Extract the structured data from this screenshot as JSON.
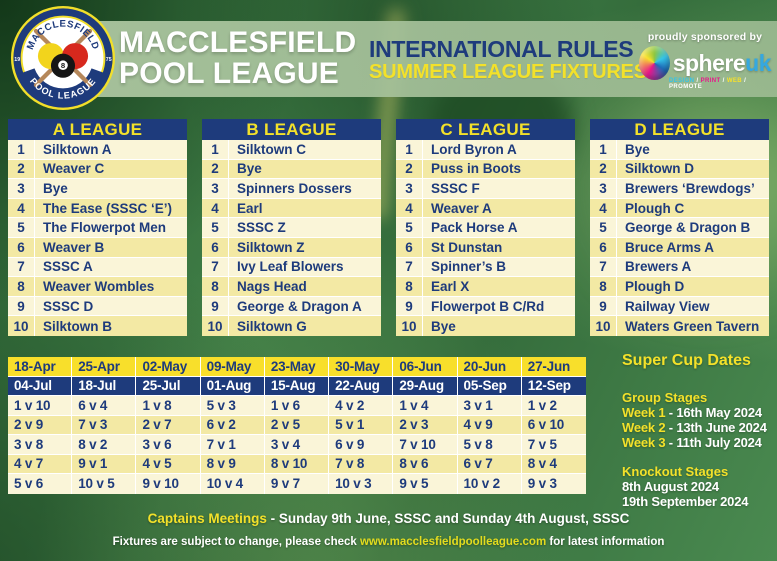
{
  "colors": {
    "navy": "#1e3b7c",
    "yellow": "#f3e12a",
    "cream": "#faf5d8",
    "pale": "#f3e9a4",
    "dateYellow": "#f8df2b"
  },
  "header": {
    "title_line1": "MACCLESFIELD",
    "title_line2": "POOL LEAGUE",
    "subtitle_line1": "INTERNATIONAL RULES",
    "subtitle_line2": "SUMMER LEAGUE FIXTURES",
    "sponsor": {
      "tagline": "proudly sponsored by",
      "brand": "sphere",
      "brand_suffix": "uk",
      "services": [
        "DESIGN",
        "PRINT",
        "WEB",
        "PROMOTE"
      ],
      "service_colors": [
        "#35c4e8",
        "#e8168b",
        "#f8e12b",
        "#ffffff"
      ]
    }
  },
  "logo": {
    "arc_top": "MACCLESFIELD",
    "arc_bottom": "POOL LEAGUE",
    "year_left": "19",
    "year_right": "75",
    "ball_number": "8"
  },
  "leagues": [
    {
      "title": "A LEAGUE",
      "teams": [
        "Silktown A",
        "Weaver C",
        "Bye",
        "The Ease (SSSC ‘E’)",
        "The Flowerpot Men",
        "Weaver B",
        "SSSC A",
        "Weaver Wombles",
        "SSSC D",
        "Silktown B"
      ]
    },
    {
      "title": "B LEAGUE",
      "teams": [
        "Silktown C",
        "Bye",
        "Spinners Dossers",
        "Earl",
        "SSSC Z",
        "Silktown Z",
        "Ivy Leaf Blowers",
        "Nags Head",
        "George & Dragon A",
        "Silktown G"
      ]
    },
    {
      "title": "C LEAGUE",
      "teams": [
        "Lord Byron A",
        "Puss in Boots",
        "SSSC F",
        "Weaver A",
        "Pack Horse A",
        "St Dunstan",
        "Spinner’s B",
        "Earl X",
        "Flowerpot B C/Rd",
        "Bye"
      ]
    },
    {
      "title": "D LEAGUE",
      "teams": [
        "Bye",
        "Silktown D",
        "Brewers ‘Brewdogs’",
        "Plough C",
        "George & Dragon B",
        "Bruce Arms A",
        "Brewers A",
        "Plough D",
        "Railway View",
        "Waters Green Tavern"
      ]
    }
  ],
  "fixtures": {
    "dates_spring": [
      "18-Apr",
      "25-Apr",
      "02-May",
      "09-May",
      "23-May",
      "30-May",
      "06-Jun",
      "20-Jun",
      "27-Jun"
    ],
    "dates_summer": [
      "04-Jul",
      "18-Jul",
      "25-Jul",
      "01-Aug",
      "15-Aug",
      "22-Aug",
      "29-Aug",
      "05-Sep",
      "12-Sep"
    ],
    "rows": [
      [
        "1 v 10",
        "6 v 4",
        "1 v 8",
        "5 v 3",
        "1 v 6",
        "4 v 2",
        "1 v 4",
        "3 v 1",
        "1 v 2"
      ],
      [
        "2 v 9",
        "7 v 3",
        "2 v 7",
        "6 v 2",
        "2 v 5",
        "5 v 1",
        "2 v 3",
        "4 v 9",
        "6 v 10"
      ],
      [
        "3 v 8",
        "8 v 2",
        "3 v 6",
        "7 v 1",
        "3 v 4",
        "6 v 9",
        "7 v 10",
        "5 v 8",
        "7 v 5"
      ],
      [
        "4 v 7",
        "9 v 1",
        "4 v 5",
        "8 v 9",
        "8 v 10",
        "7 v 8",
        "8 v 6",
        "6 v 7",
        "8 v 4"
      ],
      [
        "5 v 6",
        "10 v 5",
        "9 v 10",
        "10 v 4",
        "9 v 7",
        "10 v 3",
        "9 v 5",
        "10 v 2",
        "9 v 3"
      ]
    ]
  },
  "supercup": {
    "title": "Super Cup Dates",
    "group_heading": "Group Stages",
    "weeks": [
      {
        "label": "Week 1",
        "date": " - 16th May 2024"
      },
      {
        "label": "Week 2",
        "date": " - 13th June 2024"
      },
      {
        "label": "Week 3",
        "date": " - 11th July 2024"
      }
    ],
    "knockout_heading": "Knockout Stages",
    "knockout_dates": [
      "8th August 2024",
      "19th September 2024"
    ]
  },
  "footer": {
    "line1_highlight": "Captains Meetings",
    "line1_rest": " - Sunday 9th June, SSSC and Sunday 4th August, SSSC",
    "line2_pre": "Fixtures are subject to change, please check ",
    "line2_link": "www.macclesfieldpoolleague.com",
    "line2_post": " for latest information"
  }
}
